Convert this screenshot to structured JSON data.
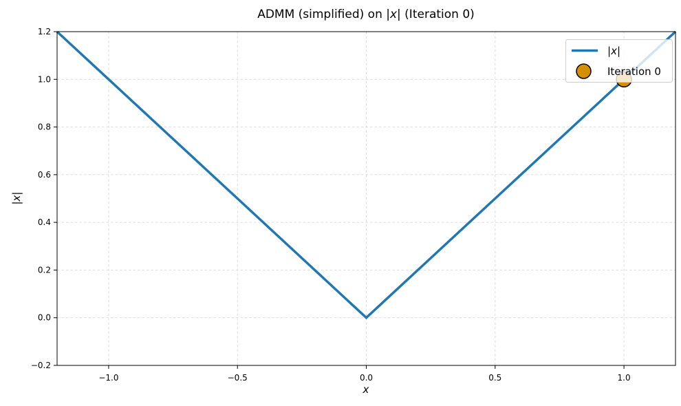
{
  "figure": {
    "title_parts": {
      "prefix": "ADMM (simplified) on |",
      "italic": "x",
      "suffix": "| (Iteration 0)"
    },
    "abs_x_parts": {
      "prefix": "|",
      "italic": "x",
      "suffix": "|"
    }
  },
  "chart_data": {
    "type": "line",
    "title": "ADMM (simplified) on |x| (Iteration 0)",
    "xlabel": "x",
    "ylabel": "|x|",
    "xlim": [
      -1.2,
      1.2
    ],
    "ylim": [
      -0.2,
      1.2
    ],
    "x_ticks": {
      "values": [
        -1.0,
        -0.5,
        0.0,
        0.5,
        1.0
      ],
      "labels": [
        "−1.0",
        "−0.5",
        "0.0",
        "0.5",
        "1.0"
      ]
    },
    "y_ticks": {
      "values": [
        -0.2,
        0.0,
        0.2,
        0.4,
        0.6,
        0.8,
        1.0,
        1.2
      ],
      "labels": [
        "−0.2",
        "0.0",
        "0.2",
        "0.4",
        "0.6",
        "0.8",
        "1.0",
        "1.2"
      ]
    },
    "grid": {
      "visible": true,
      "linestyle": "dashed",
      "color": "#d9d9d9"
    },
    "series": [
      {
        "name": "|x|",
        "color": "#1f77b4",
        "linewidth": 3.5,
        "points": [
          [
            -1.2,
            1.2
          ],
          [
            0.0,
            0.0
          ],
          [
            1.2,
            1.2
          ]
        ]
      }
    ],
    "scatter": [
      {
        "name": "Iteration 0",
        "x": 1.0,
        "y": 1.0,
        "color": "#d68e04",
        "edgecolor": "#000000",
        "radius": 11
      }
    ],
    "legend": {
      "position": "upper right",
      "frame_alpha": 0.8,
      "entries": [
        {
          "label": "|x|",
          "type": "line"
        },
        {
          "label": "Iteration 0",
          "type": "circle"
        }
      ]
    }
  }
}
